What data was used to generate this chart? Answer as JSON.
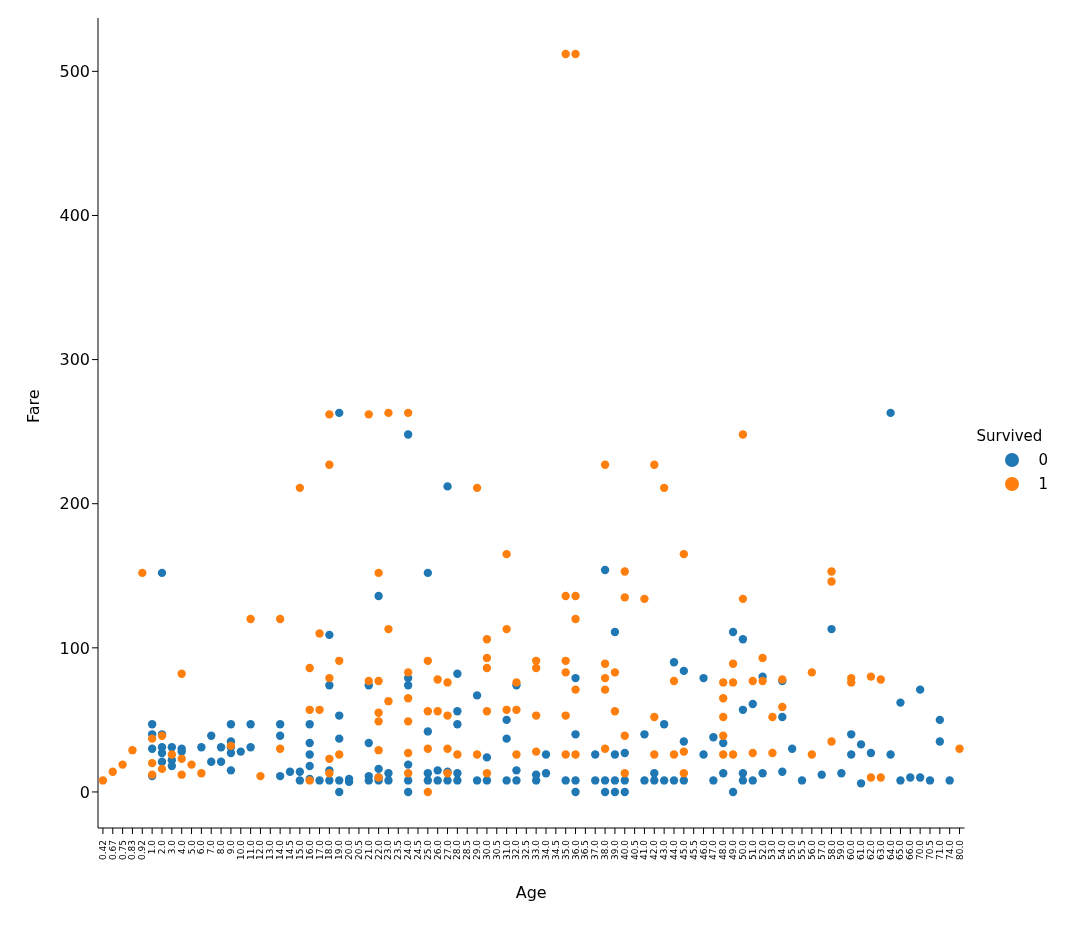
{
  "chart_data": {
    "type": "scatter",
    "xlabel": "Age",
    "ylabel": "Fare",
    "legend_title": "Survived",
    "legend": "right",
    "marker": "circle",
    "grid": false,
    "categories": [
      "0.42",
      "0.67",
      "0.75",
      "0.83",
      "0.92",
      "1.0",
      "2.0",
      "3.0",
      "4.0",
      "5.0",
      "6.0",
      "7.0",
      "8.0",
      "9.0",
      "10.0",
      "11.0",
      "12.0",
      "13.0",
      "14.0",
      "14.5",
      "15.0",
      "16.0",
      "17.0",
      "18.0",
      "19.0",
      "20.0",
      "20.5",
      "21.0",
      "22.0",
      "23.0",
      "23.5",
      "24.0",
      "24.5",
      "25.0",
      "26.0",
      "27.0",
      "28.0",
      "28.5",
      "29.0",
      "30.0",
      "30.5",
      "31.0",
      "32.0",
      "32.5",
      "33.0",
      "34.0",
      "34.5",
      "35.0",
      "36.0",
      "36.5",
      "37.0",
      "38.0",
      "39.0",
      "40.0",
      "40.5",
      "41.0",
      "42.0",
      "43.0",
      "44.0",
      "45.0",
      "45.5",
      "46.0",
      "47.0",
      "48.0",
      "49.0",
      "50.0",
      "51.0",
      "52.0",
      "53.0",
      "54.0",
      "55.0",
      "55.5",
      "56.0",
      "57.0",
      "58.0",
      "59.0",
      "60.0",
      "61.0",
      "62.0",
      "63.0",
      "64.0",
      "65.0",
      "66.0",
      "70.0",
      "70.5",
      "71.0",
      "74.0",
      "80.0"
    ],
    "ylim": [
      -25,
      537
    ],
    "yticks": [
      0,
      100,
      200,
      300,
      400,
      500
    ],
    "series": [
      {
        "name": "0",
        "color": "#1f77b4",
        "x": [
          "1.0",
          "1.0",
          "1.0",
          "1.0",
          "2.0",
          "2.0",
          "2.0",
          "2.0",
          "2.0",
          "3.0",
          "3.0",
          "3.0",
          "4.0",
          "4.0",
          "6.0",
          "7.0",
          "7.0",
          "8.0",
          "8.0",
          "9.0",
          "9.0",
          "9.0",
          "9.0",
          "9.0",
          "10.0",
          "11.0",
          "11.0",
          "14.0",
          "14.0",
          "14.0",
          "14.5",
          "15.0",
          "15.0",
          "16.0",
          "16.0",
          "16.0",
          "16.0",
          "16.0",
          "17.0",
          "18.0",
          "18.0",
          "18.0",
          "18.0",
          "19.0",
          "19.0",
          "19.0",
          "19.0",
          "19.0",
          "20.0",
          "20.0",
          "21.0",
          "21.0",
          "21.0",
          "21.0",
          "22.0",
          "22.0",
          "22.0",
          "22.0",
          "23.0",
          "23.0",
          "24.0",
          "24.0",
          "24.0",
          "24.0",
          "24.0",
          "24.0",
          "25.0",
          "25.0",
          "25.0",
          "25.0",
          "26.0",
          "26.0",
          "27.0",
          "27.0",
          "27.0",
          "28.0",
          "28.0",
          "28.0",
          "28.0",
          "28.0",
          "29.0",
          "29.0",
          "30.0",
          "30.0",
          "31.0",
          "31.0",
          "31.0",
          "32.0",
          "32.0",
          "32.0",
          "33.0",
          "33.0",
          "34.0",
          "34.0",
          "35.0",
          "36.0",
          "36.0",
          "36.0",
          "36.0",
          "37.0",
          "37.0",
          "38.0",
          "38.0",
          "38.0",
          "39.0",
          "39.0",
          "39.0",
          "39.0",
          "40.0",
          "40.0",
          "40.0",
          "41.0",
          "41.0",
          "42.0",
          "42.0",
          "43.0",
          "43.0",
          "44.0",
          "44.0",
          "45.0",
          "45.0",
          "45.0",
          "46.0",
          "46.0",
          "47.0",
          "47.0",
          "48.0",
          "48.0",
          "49.0",
          "49.0",
          "50.0",
          "50.0",
          "50.0",
          "50.0",
          "51.0",
          "51.0",
          "52.0",
          "52.0",
          "54.0",
          "54.0",
          "54.0",
          "55.0",
          "55.5",
          "57.0",
          "58.0",
          "59.0",
          "60.0",
          "60.0",
          "61.0",
          "61.0",
          "62.0",
          "64.0",
          "64.0",
          "65.0",
          "65.0",
          "66.0",
          "70.0",
          "70.0",
          "70.5",
          "71.0",
          "71.0",
          "74.0"
        ],
        "values": [
          47,
          40,
          30,
          11,
          152,
          40,
          31,
          27,
          21,
          31,
          22,
          18,
          30,
          28,
          31,
          39,
          21,
          31,
          21,
          47,
          35,
          31,
          27,
          15,
          28,
          47,
          31,
          47,
          39,
          11,
          14,
          8,
          14,
          47,
          34,
          26,
          18,
          9,
          8,
          109,
          74,
          15,
          8,
          263,
          53,
          37,
          0,
          8,
          9,
          7,
          74,
          34,
          11,
          8,
          136,
          16,
          10,
          8,
          8,
          13,
          248,
          79,
          74,
          19,
          8,
          0,
          152,
          42,
          8,
          13,
          8,
          15,
          212,
          14,
          8,
          82,
          56,
          47,
          8,
          13,
          67,
          8,
          8,
          24,
          50,
          37,
          8,
          74,
          8,
          15,
          8,
          12,
          13,
          26,
          8,
          79,
          40,
          8,
          0,
          8,
          26,
          154,
          0,
          8,
          111,
          0,
          8,
          26,
          0,
          8,
          27,
          40,
          8,
          8,
          13,
          47,
          8,
          90,
          8,
          84,
          35,
          8,
          79,
          26,
          8,
          38,
          13,
          34,
          111,
          0,
          106,
          57,
          13,
          8,
          61,
          8,
          80,
          13,
          77,
          52,
          14,
          30,
          8,
          12,
          113,
          13,
          40,
          26,
          33,
          6,
          27,
          263,
          26,
          62,
          8,
          10,
          71,
          10,
          8,
          50,
          35,
          8
        ]
      },
      {
        "name": "1",
        "color": "#ff7f0e",
        "x": [
          "0.42",
          "0.67",
          "0.75",
          "0.83",
          "0.92",
          "1.0",
          "1.0",
          "1.0",
          "2.0",
          "2.0",
          "3.0",
          "4.0",
          "4.0",
          "4.0",
          "5.0",
          "6.0",
          "9.0",
          "11.0",
          "12.0",
          "14.0",
          "14.0",
          "15.0",
          "16.0",
          "16.0",
          "16.0",
          "17.0",
          "17.0",
          "18.0",
          "18.0",
          "18.0",
          "18.0",
          "18.0",
          "19.0",
          "19.0",
          "21.0",
          "21.0",
          "22.0",
          "22.0",
          "22.0",
          "22.0",
          "22.0",
          "22.0",
          "23.0",
          "23.0",
          "23.0",
          "24.0",
          "24.0",
          "24.0",
          "24.0",
          "24.0",
          "24.0",
          "25.0",
          "25.0",
          "25.0",
          "25.0",
          "26.0",
          "26.0",
          "27.0",
          "27.0",
          "27.0",
          "27.0",
          "28.0",
          "29.0",
          "29.0",
          "30.0",
          "30.0",
          "30.0",
          "30.0",
          "30.0",
          "31.0",
          "31.0",
          "31.0",
          "32.0",
          "32.0",
          "32.0",
          "33.0",
          "33.0",
          "33.0",
          "33.0",
          "35.0",
          "35.0",
          "35.0",
          "35.0",
          "35.0",
          "35.0",
          "36.0",
          "36.0",
          "36.0",
          "36.0",
          "36.0",
          "38.0",
          "38.0",
          "38.0",
          "38.0",
          "38.0",
          "39.0",
          "39.0",
          "40.0",
          "40.0",
          "40.0",
          "40.0",
          "41.0",
          "42.0",
          "42.0",
          "42.0",
          "43.0",
          "44.0",
          "44.0",
          "45.0",
          "45.0",
          "45.0",
          "48.0",
          "48.0",
          "48.0",
          "48.0",
          "48.0",
          "49.0",
          "49.0",
          "49.0",
          "50.0",
          "50.0",
          "51.0",
          "51.0",
          "52.0",
          "52.0",
          "53.0",
          "53.0",
          "54.0",
          "54.0",
          "56.0",
          "56.0",
          "58.0",
          "58.0",
          "58.0",
          "60.0",
          "60.0",
          "62.0",
          "62.0",
          "63.0",
          "63.0",
          "80.0"
        ],
        "values": [
          8,
          14,
          19,
          29,
          152,
          37,
          20,
          12,
          39,
          16,
          26,
          82,
          23,
          12,
          19,
          13,
          32,
          120,
          11,
          120,
          30,
          211,
          86,
          57,
          8,
          110,
          57,
          262,
          227,
          79,
          23,
          13,
          91,
          26,
          262,
          77,
          152,
          77,
          55,
          49,
          29,
          10,
          263,
          113,
          63,
          263,
          83,
          65,
          49,
          27,
          13,
          91,
          56,
          30,
          0,
          78,
          56,
          76,
          53,
          30,
          13,
          26,
          211,
          26,
          106,
          93,
          86,
          56,
          13,
          165,
          113,
          57,
          76,
          57,
          26,
          91,
          86,
          53,
          28,
          512,
          136,
          91,
          83,
          53,
          26,
          512,
          136,
          120,
          71,
          26,
          227,
          89,
          79,
          71,
          30,
          83,
          56,
          153,
          135,
          39,
          13,
          134,
          227,
          52,
          26,
          211,
          77,
          26,
          165,
          28,
          13,
          76,
          65,
          52,
          39,
          26,
          89,
          76,
          26,
          248,
          134,
          77,
          27,
          93,
          77,
          52,
          27,
          78,
          59,
          83,
          26,
          153,
          146,
          35,
          79,
          76,
          80,
          10,
          78,
          10,
          30
        ]
      }
    ]
  }
}
